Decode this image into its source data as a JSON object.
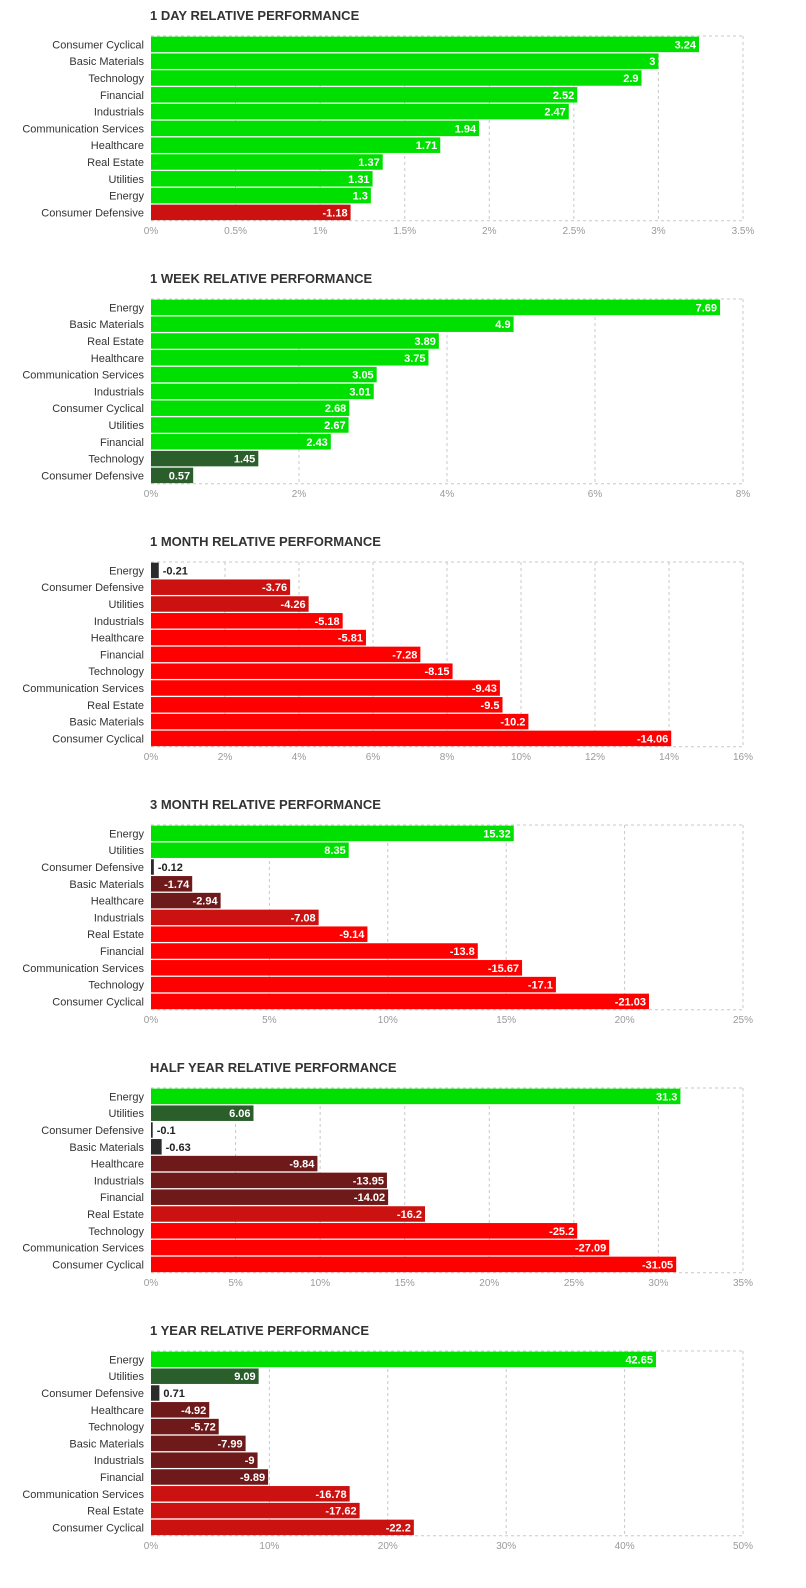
{
  "colors": {
    "bright_green": "#00e000",
    "dark_green": "#2a5e2a",
    "bright_red": "#ff0000",
    "red": "#cc1111",
    "dark_red": "#6f1a1a",
    "neutral_dark": "#2b2b2b",
    "grid": "#c8c8c8"
  },
  "chart_data": [
    {
      "type": "bar",
      "orientation": "horizontal",
      "title": "1 DAY RELATIVE PERFORMANCE",
      "categories": [
        "Consumer Cyclical",
        "Basic Materials",
        "Technology",
        "Financial",
        "Industrials",
        "Communication Services",
        "Healthcare",
        "Real Estate",
        "Utilities",
        "Energy",
        "Consumer Defensive"
      ],
      "values": [
        3.24,
        3,
        2.9,
        2.52,
        2.47,
        1.94,
        1.71,
        1.37,
        1.31,
        1.3,
        -1.18
      ],
      "value_labels": [
        "3.24",
        "3",
        "2.9",
        "2.52",
        "2.47",
        "1.94",
        "1.71",
        "1.37",
        "1.31",
        "1.3",
        "-1.18"
      ],
      "bar_colors": [
        "bright_green",
        "bright_green",
        "bright_green",
        "bright_green",
        "bright_green",
        "bright_green",
        "bright_green",
        "bright_green",
        "bright_green",
        "bright_green",
        "red"
      ],
      "xlim": [
        0,
        3.5
      ],
      "ticks": [
        "0%",
        "0.5%",
        "1%",
        "1.5%",
        "2%",
        "2.5%",
        "3%",
        "3.5%"
      ]
    },
    {
      "type": "bar",
      "orientation": "horizontal",
      "title": "1 WEEK RELATIVE PERFORMANCE",
      "categories": [
        "Energy",
        "Basic Materials",
        "Real Estate",
        "Healthcare",
        "Communication Services",
        "Industrials",
        "Consumer Cyclical",
        "Utilities",
        "Financial",
        "Technology",
        "Consumer Defensive"
      ],
      "values": [
        7.69,
        4.9,
        3.89,
        3.75,
        3.05,
        3.01,
        2.68,
        2.67,
        2.43,
        1.45,
        0.57
      ],
      "value_labels": [
        "7.69",
        "4.9",
        "3.89",
        "3.75",
        "3.05",
        "3.01",
        "2.68",
        "2.67",
        "2.43",
        "1.45",
        "0.57"
      ],
      "bar_colors": [
        "bright_green",
        "bright_green",
        "bright_green",
        "bright_green",
        "bright_green",
        "bright_green",
        "bright_green",
        "bright_green",
        "bright_green",
        "dark_green",
        "dark_green"
      ],
      "xlim": [
        0,
        8
      ],
      "ticks": [
        "0%",
        "2%",
        "4%",
        "6%",
        "8%"
      ]
    },
    {
      "type": "bar",
      "orientation": "horizontal",
      "title": "1 MONTH RELATIVE PERFORMANCE",
      "categories": [
        "Energy",
        "Consumer Defensive",
        "Utilities",
        "Industrials",
        "Healthcare",
        "Financial",
        "Technology",
        "Communication Services",
        "Real Estate",
        "Basic Materials",
        "Consumer Cyclical"
      ],
      "values": [
        -0.21,
        -3.76,
        -4.26,
        -5.18,
        -5.81,
        -7.28,
        -8.15,
        -9.43,
        -9.5,
        -10.2,
        -14.06
      ],
      "value_labels": [
        "-0.21",
        "-3.76",
        "-4.26",
        "-5.18",
        "-5.81",
        "-7.28",
        "-8.15",
        "-9.43",
        "-9.5",
        "-10.2",
        "-14.06"
      ],
      "bar_colors": [
        "neutral_dark",
        "red",
        "red",
        "bright_red",
        "bright_red",
        "bright_red",
        "bright_red",
        "bright_red",
        "bright_red",
        "bright_red",
        "bright_red"
      ],
      "xlim": [
        0,
        16
      ],
      "ticks": [
        "0%",
        "2%",
        "4%",
        "6%",
        "8%",
        "10%",
        "12%",
        "14%",
        "16%"
      ]
    },
    {
      "type": "bar",
      "orientation": "horizontal",
      "title": "3 MONTH RELATIVE PERFORMANCE",
      "categories": [
        "Energy",
        "Utilities",
        "Consumer Defensive",
        "Basic Materials",
        "Healthcare",
        "Industrials",
        "Real Estate",
        "Financial",
        "Communication Services",
        "Technology",
        "Consumer Cyclical"
      ],
      "values": [
        15.32,
        8.35,
        -0.12,
        -1.74,
        -2.94,
        -7.08,
        -9.14,
        -13.8,
        -15.67,
        -17.1,
        -21.03
      ],
      "value_labels": [
        "15.32",
        "8.35",
        "-0.12",
        "-1.74",
        "-2.94",
        "-7.08",
        "-9.14",
        "-13.8",
        "-15.67",
        "-17.1",
        "-21.03"
      ],
      "bar_colors": [
        "bright_green",
        "bright_green",
        "neutral_dark",
        "dark_red",
        "dark_red",
        "red",
        "bright_red",
        "bright_red",
        "bright_red",
        "bright_red",
        "bright_red"
      ],
      "xlim": [
        0,
        25
      ],
      "ticks": [
        "0%",
        "5%",
        "10%",
        "15%",
        "20%",
        "25%"
      ]
    },
    {
      "type": "bar",
      "orientation": "horizontal",
      "title": "HALF YEAR RELATIVE PERFORMANCE",
      "categories": [
        "Energy",
        "Utilities",
        "Consumer Defensive",
        "Basic Materials",
        "Healthcare",
        "Industrials",
        "Financial",
        "Real Estate",
        "Technology",
        "Communication Services",
        "Consumer Cyclical"
      ],
      "values": [
        31.3,
        6.06,
        -0.1,
        -0.63,
        -9.84,
        -13.95,
        -14.02,
        -16.2,
        -25.2,
        -27.09,
        -31.05
      ],
      "value_labels": [
        "31.3",
        "6.06",
        "-0.1",
        "-0.63",
        "-9.84",
        "-13.95",
        "-14.02",
        "-16.2",
        "-25.2",
        "-27.09",
        "-31.05"
      ],
      "bar_colors": [
        "bright_green",
        "dark_green",
        "neutral_dark",
        "neutral_dark",
        "dark_red",
        "dark_red",
        "dark_red",
        "red",
        "bright_red",
        "bright_red",
        "bright_red"
      ],
      "xlim": [
        0,
        35
      ],
      "ticks": [
        "0%",
        "5%",
        "10%",
        "15%",
        "20%",
        "25%",
        "30%",
        "35%"
      ]
    },
    {
      "type": "bar",
      "orientation": "horizontal",
      "title": "1 YEAR RELATIVE PERFORMANCE",
      "categories": [
        "Energy",
        "Utilities",
        "Consumer Defensive",
        "Healthcare",
        "Technology",
        "Basic Materials",
        "Industrials",
        "Financial",
        "Communication Services",
        "Real Estate",
        "Consumer Cyclical"
      ],
      "values": [
        42.65,
        9.09,
        0.71,
        -4.92,
        -5.72,
        -7.99,
        -9,
        -9.89,
        -16.78,
        -17.62,
        -22.2
      ],
      "value_labels": [
        "42.65",
        "9.09",
        "0.71",
        "-4.92",
        "-5.72",
        "-7.99",
        "-9",
        "-9.89",
        "-16.78",
        "-17.62",
        "-22.2"
      ],
      "bar_colors": [
        "bright_green",
        "dark_green",
        "neutral_dark",
        "dark_red",
        "dark_red",
        "dark_red",
        "dark_red",
        "dark_red",
        "red",
        "red",
        "red"
      ],
      "xlim": [
        0,
        50
      ],
      "ticks": [
        "0%",
        "10%",
        "20%",
        "30%",
        "40%",
        "50%"
      ]
    }
  ]
}
